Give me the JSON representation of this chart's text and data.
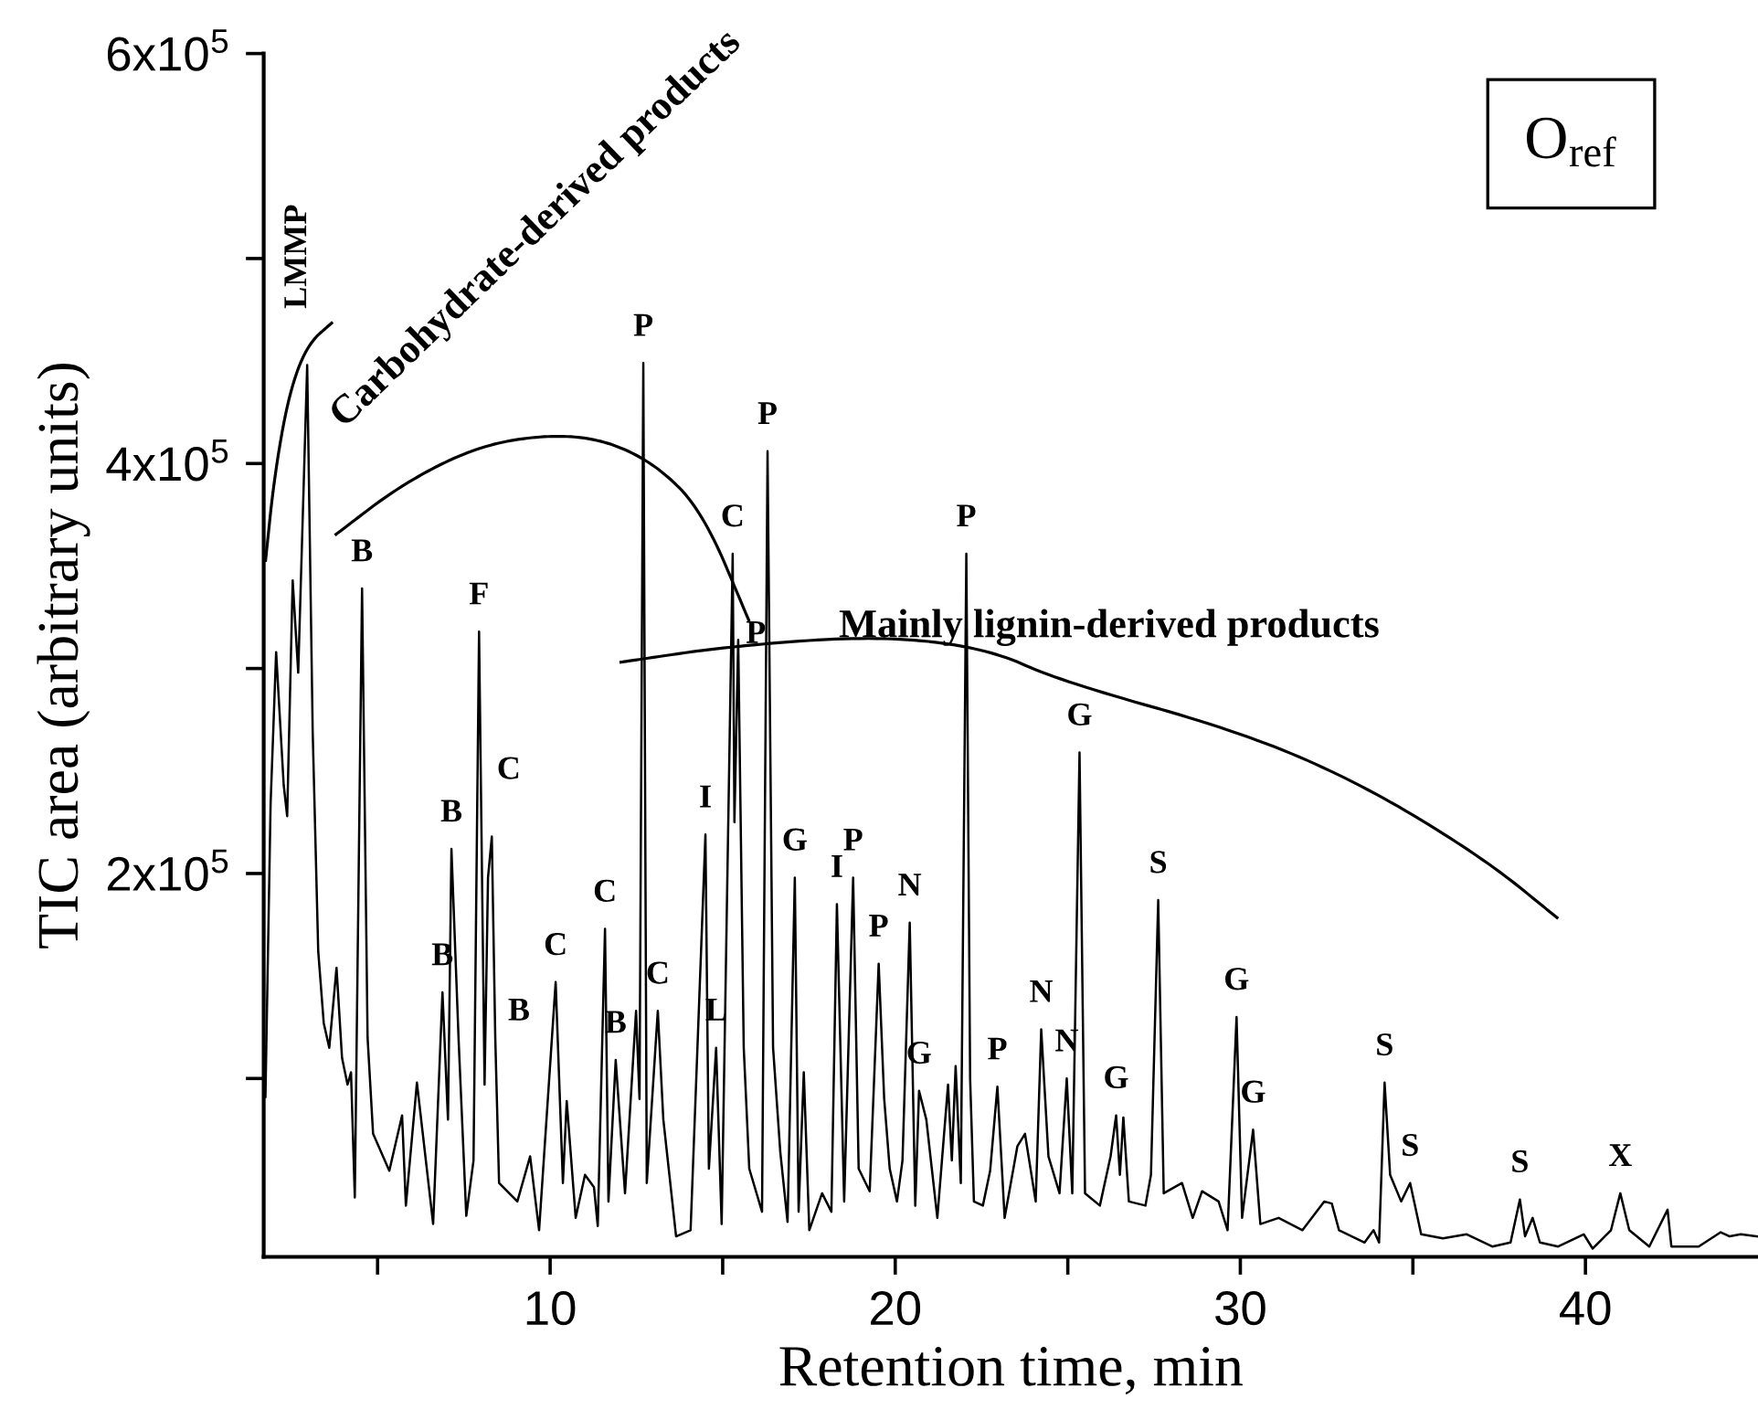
{
  "chart_data": {
    "type": "line",
    "xlabel": "Retention time, min",
    "ylabel": "TIC area (arbitrary units)",
    "xlim": [
      1.7,
      45
    ],
    "ylim": [
      13000,
      600000
    ],
    "xticks": [
      {
        "value": 5,
        "label": null
      },
      10,
      {
        "value": 15,
        "label": null
      },
      20,
      {
        "value": 25,
        "label": null
      },
      30,
      {
        "value": 35,
        "label": null
      },
      40
    ],
    "yticks": [
      {
        "value": 100000,
        "label": null
      },
      {
        "value": 200000,
        "label": "2x10$^{5}$"
      },
      {
        "value": 300000,
        "label": null
      },
      {
        "value": 400000,
        "label": "4x10$^{5}$"
      },
      {
        "value": 500000,
        "label": null
      },
      {
        "value": 600000,
        "label": "6x10$^{5}$"
      }
    ],
    "grid": false,
    "marker": "none",
    "line_style": "solid",
    "series": [
      {
        "color": "#000000",
        "x": [
          1.75,
          1.9,
          2.06,
          2.28,
          2.38,
          2.54,
          2.7,
          2.96,
          3.12,
          3.28,
          3.44,
          3.6,
          3.81,
          3.97,
          4.13,
          4.23,
          4.34,
          4.55,
          4.71,
          4.87,
          5.34,
          5.71,
          5.82,
          6.14,
          6.61,
          6.88,
          7.04,
          7.14,
          7.35,
          7.57,
          7.78,
          7.94,
          8.1,
          8.2,
          8.31,
          8.41,
          8.52,
          9.05,
          9.42,
          9.68,
          10.16,
          10.37,
          10.48,
          10.74,
          11.01,
          11.27,
          11.38,
          11.59,
          11.69,
          11.9,
          12.17,
          12.49,
          12.59,
          12.7,
          12.8,
          13.12,
          13.28,
          13.65,
          14.07,
          14.5,
          14.6,
          14.81,
          14.97,
          15.29,
          15.34,
          15.45,
          15.61,
          15.77,
          16.14,
          16.3,
          16.46,
          16.67,
          16.88,
          17.09,
          17.2,
          17.35,
          17.51,
          17.88,
          18.15,
          18.31,
          18.52,
          18.78,
          18.94,
          19.26,
          19.52,
          19.68,
          19.84,
          20.05,
          20.21,
          20.42,
          20.58,
          20.69,
          20.9,
          21.22,
          21.53,
          21.64,
          21.75,
          21.9,
          22.06,
          22.17,
          22.28,
          22.54,
          22.75,
          22.96,
          23.17,
          23.54,
          23.76,
          24.07,
          24.23,
          24.44,
          24.76,
          24.97,
          25.13,
          25.34,
          25.5,
          25.93,
          26.24,
          26.4,
          26.51,
          26.61,
          26.77,
          27.25,
          27.41,
          27.62,
          27.78,
          28.31,
          28.62,
          28.89,
          29.37,
          29.63,
          29.89,
          30.05,
          30.37,
          30.58,
          31.11,
          31.8,
          32.43,
          32.65,
          32.86,
          33.6,
          33.86,
          34.02,
          34.18,
          34.34,
          34.66,
          34.92,
          35.24,
          35.87,
          36.56,
          37.3,
          37.83,
          38.1,
          38.25,
          38.47,
          38.68,
          39.21,
          39.95,
          40.21,
          40.74,
          41.01,
          41.27,
          41.85,
          42.38,
          42.49,
          43.28,
          43.92,
          44.18,
          44.5,
          44.97
        ],
        "values": [
          91000,
          234000,
          308000,
          243000,
          228000,
          343000,
          298000,
          448000,
          269000,
          162000,
          127000,
          115000,
          154000,
          110000,
          97000,
          103000,
          42000,
          339000,
          120000,
          73000,
          55000,
          82000,
          38000,
          98000,
          29000,
          142000,
          80000,
          212000,
          118000,
          33000,
          60000,
          318000,
          97000,
          198000,
          218000,
          120000,
          49000,
          40000,
          62000,
          26000,
          147000,
          49000,
          89000,
          32000,
          53000,
          47000,
          28000,
          173000,
          40000,
          109000,
          44000,
          133000,
          90000,
          449000,
          49000,
          133000,
          80000,
          23000,
          26000,
          219000,
          56000,
          115000,
          29000,
          356000,
          225000,
          314000,
          115000,
          56000,
          35000,
          406000,
          115000,
          64000,
          30000,
          198000,
          35000,
          103000,
          26000,
          44000,
          35000,
          185000,
          40000,
          198000,
          56000,
          45000,
          156000,
          90000,
          56000,
          40000,
          60000,
          176000,
          38000,
          94000,
          80000,
          32000,
          97000,
          60000,
          106000,
          49000,
          356000,
          100000,
          40000,
          38000,
          55000,
          96000,
          32000,
          67000,
          73000,
          40000,
          124000,
          62000,
          44000,
          100000,
          44000,
          259000,
          44000,
          38000,
          62000,
          82000,
          53000,
          81000,
          40000,
          38000,
          53000,
          187000,
          44000,
          49000,
          32000,
          45000,
          40000,
          26000,
          130000,
          32000,
          75000,
          29000,
          32000,
          26000,
          40000,
          39000,
          26000,
          20000,
          26000,
          20000,
          98000,
          53000,
          40000,
          49000,
          24000,
          22000,
          24000,
          18000,
          20000,
          41000,
          23000,
          32000,
          20000,
          18000,
          24000,
          17000,
          26000,
          44000,
          26000,
          18000,
          36000,
          18000,
          18000,
          25000,
          23000,
          24000,
          23000
        ]
      }
    ],
    "annotations": [
      "LMMP",
      "Carbohydrate-derived products",
      "Mainly lignin-derived products",
      "O$_{ref}$",
      {
        "text": "B",
        "x": 4.55,
        "y": 339000
      },
      {
        "text": "B",
        "x": 6.88,
        "y": 142000
      },
      {
        "text": "B",
        "x": 7.14,
        "y": 212000
      },
      {
        "text": "F",
        "x": 7.94,
        "y": 318000
      },
      {
        "text": "C",
        "x": 8.31,
        "y": 218000
      },
      {
        "text": "B",
        "x": 8.41,
        "y": 120000
      },
      {
        "text": "C",
        "x": 10.16,
        "y": 147000
      },
      {
        "text": "C",
        "x": 11.59,
        "y": 173000
      },
      {
        "text": "B",
        "x": 11.9,
        "y": 109000
      },
      {
        "text": "P",
        "x": 12.7,
        "y": 449000
      },
      {
        "text": "C",
        "x": 13.12,
        "y": 133000
      },
      {
        "text": "I",
        "x": 14.5,
        "y": 219000
      },
      {
        "text": "L",
        "x": 14.81,
        "y": 115000
      },
      {
        "text": "C",
        "x": 15.29,
        "y": 356000
      },
      {
        "text": "P",
        "x": 15.45,
        "y": 314000
      },
      {
        "text": "P",
        "x": 16.3,
        "y": 406000
      },
      {
        "text": "G",
        "x": 17.09,
        "y": 198000
      },
      {
        "text": "I",
        "x": 18.31,
        "y": 185000
      },
      {
        "text": "P",
        "x": 18.78,
        "y": 198000
      },
      {
        "text": "P",
        "x": 19.52,
        "y": 156000
      },
      {
        "text": "N",
        "x": 20.42,
        "y": 176000
      },
      {
        "text": "G",
        "x": 20.69,
        "y": 94000
      },
      {
        "text": "P",
        "x": 22.06,
        "y": 356000
      },
      {
        "text": "P",
        "x": 22.96,
        "y": 96000
      },
      {
        "text": "N",
        "x": 24.23,
        "y": 124000
      },
      {
        "text": "N",
        "x": 24.97,
        "y": 100000
      },
      {
        "text": "G",
        "x": 25.34,
        "y": 259000
      },
      {
        "text": "G",
        "x": 26.4,
        "y": 82000
      },
      {
        "text": "S",
        "x": 27.62,
        "y": 187000
      },
      {
        "text": "G",
        "x": 29.89,
        "y": 130000
      },
      {
        "text": "G",
        "x": 30.37,
        "y": 75000
      },
      {
        "text": "S",
        "x": 34.18,
        "y": 98000
      },
      {
        "text": "S",
        "x": 34.92,
        "y": 49000
      },
      {
        "text": "S",
        "x": 38.1,
        "y": 41000
      },
      {
        "text": "X",
        "x": 41.01,
        "y": 44000
      }
    ]
  }
}
